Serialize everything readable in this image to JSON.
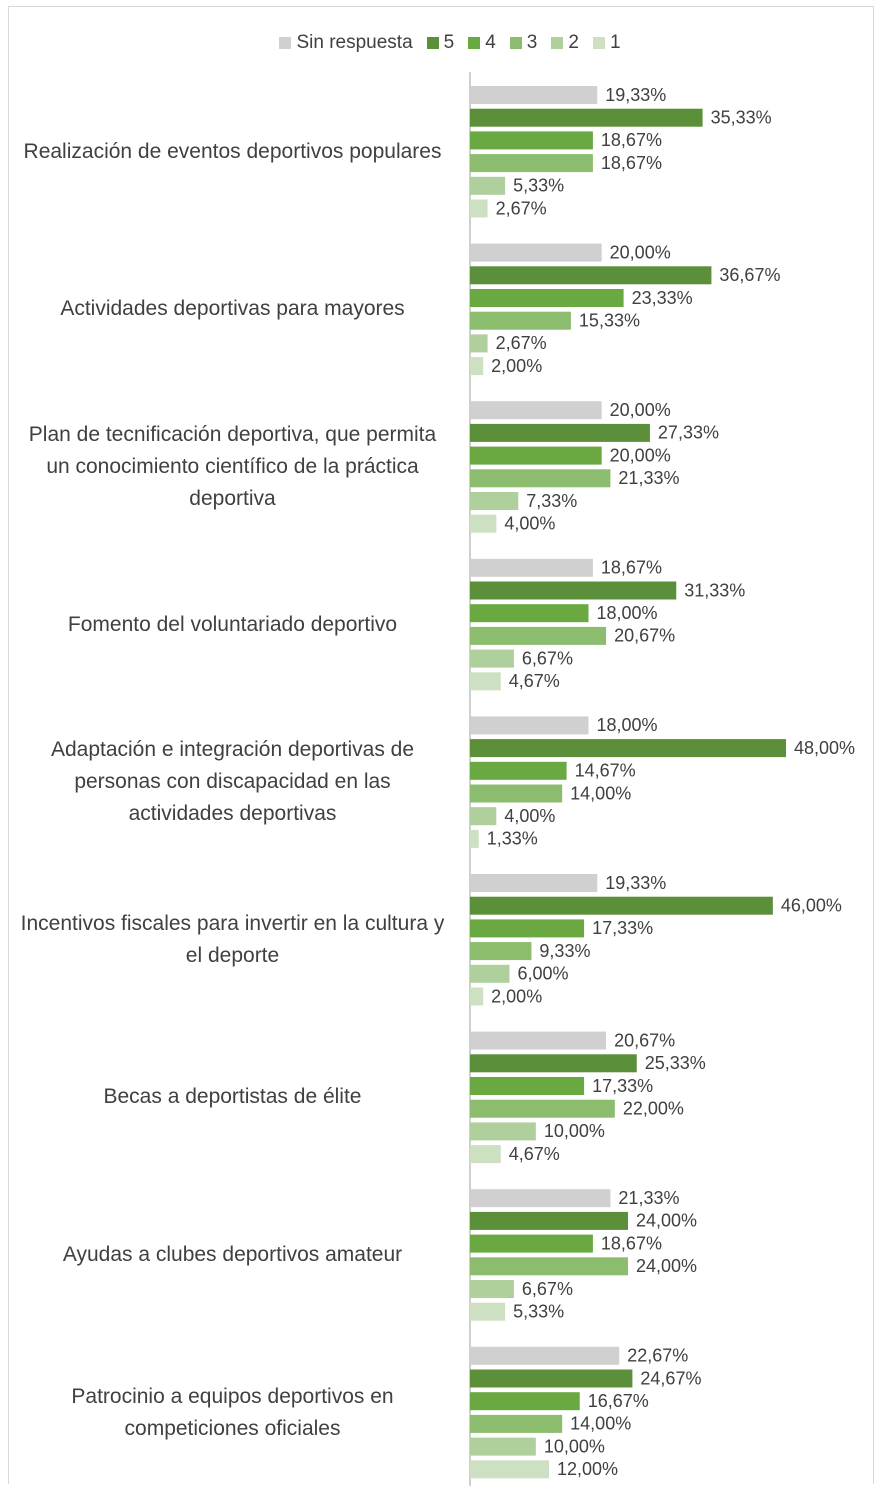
{
  "chart_data": {
    "type": "bar",
    "orientation": "horizontal",
    "categories": [
      "Realización de eventos deportivos populares",
      "Actividades deportivas para mayores",
      "Plan de tecnificación deportiva, que permita un conocimiento científico de la práctica deportiva",
      "Fomento del voluntariado deportivo",
      "Adaptación e integración deportivas de personas con discapacidad en las actividades deportivas",
      "Incentivos fiscales para invertir en la cultura y el deporte",
      "Becas a deportistas de élite",
      "Ayudas a clubes deportivos amateur",
      "Patrocinio a equipos deportivos en competiciones oficiales"
    ],
    "series": [
      {
        "name": "Sin respuesta",
        "color": "#d0d0d0",
        "values": [
          19.33,
          20.0,
          20.0,
          18.67,
          18.0,
          19.33,
          20.67,
          21.33,
          22.67
        ],
        "value_labels": [
          "19,33%",
          "20,00%",
          "20,00%",
          "18,67%",
          "18,00%",
          "19,33%",
          "20,67%",
          "21,33%",
          "22,67%"
        ]
      },
      {
        "name": "5",
        "color": "#5b8f3a",
        "values": [
          35.33,
          36.67,
          27.33,
          31.33,
          48.0,
          46.0,
          25.33,
          24.0,
          24.67
        ],
        "value_labels": [
          "35,33%",
          "36,67%",
          "27,33%",
          "31,33%",
          "48,00%",
          "46,00%",
          "25,33%",
          "24,00%",
          "24,67%"
        ]
      },
      {
        "name": "4",
        "color": "#6aa842",
        "values": [
          18.67,
          23.33,
          20.0,
          18.0,
          14.67,
          17.33,
          17.33,
          18.67,
          16.67
        ],
        "value_labels": [
          "18,67%",
          "23,33%",
          "20,00%",
          "18,00%",
          "14,67%",
          "17,33%",
          "17,33%",
          "18,67%",
          "16,67%"
        ]
      },
      {
        "name": "3",
        "color": "#8cbd6e",
        "values": [
          18.67,
          15.33,
          21.33,
          20.67,
          14.0,
          9.33,
          22.0,
          24.0,
          14.0
        ],
        "value_labels": [
          "18,67%",
          "15,33%",
          "21,33%",
          "20,67%",
          "14,00%",
          "9,33%",
          "22,00%",
          "24,00%",
          "14,00%"
        ]
      },
      {
        "name": "2",
        "color": "#afcf9c",
        "values": [
          5.33,
          2.67,
          7.33,
          6.67,
          4.0,
          6.0,
          10.0,
          6.67,
          10.0
        ],
        "value_labels": [
          "5,33%",
          "2,67%",
          "7,33%",
          "6,67%",
          "4,00%",
          "6,00%",
          "10,00%",
          "6,67%",
          "10,00%"
        ]
      },
      {
        "name": "1",
        "color": "#cde0c2",
        "values": [
          2.67,
          2.0,
          4.0,
          4.67,
          1.33,
          2.0,
          4.67,
          5.33,
          12.0
        ],
        "value_labels": [
          "2,67%",
          "2,00%",
          "4,00%",
          "4,67%",
          "1,33%",
          "2,00%",
          "4,67%",
          "5,33%",
          "12,00%"
        ]
      }
    ]
  }
}
